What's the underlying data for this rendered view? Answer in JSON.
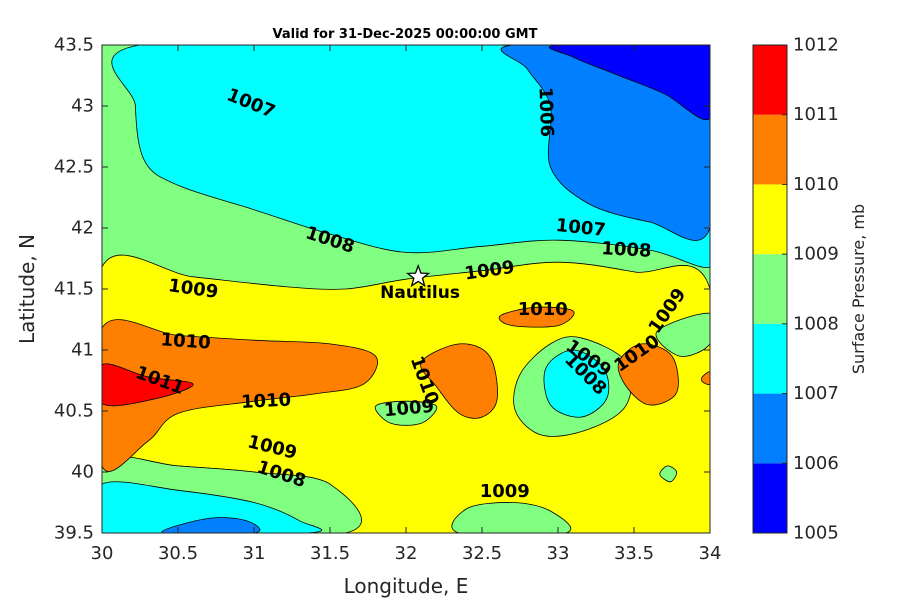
{
  "chart_data": {
    "type": "contour",
    "title": "Valid for 31-Dec-2025 00:00:00 GMT",
    "xlabel": "Longitude, E",
    "ylabel": "Latitude, N",
    "xlim": [
      30,
      34
    ],
    "ylim": [
      39.5,
      43.5
    ],
    "xticks": [
      "30",
      "30.5",
      "31",
      "31.5",
      "32",
      "32.5",
      "33",
      "33.5",
      "34"
    ],
    "yticks": [
      "39.5",
      "40",
      "40.5",
      "41",
      "41.5",
      "42",
      "42.5",
      "43",
      "43.5"
    ],
    "colorbar": {
      "label": "Surface Pressure, mb",
      "levels": [
        1005,
        1006,
        1007,
        1008,
        1009,
        1010,
        1011,
        1012
      ],
      "tick_labels": [
        "1005",
        "1006",
        "1007",
        "1008",
        "1009",
        "1010",
        "1011",
        "1012"
      ],
      "colors": [
        "#0000ff",
        "#0080ff",
        "#00ffff",
        "#80ff80",
        "#ffff00",
        "#ff8000",
        "#ff0000",
        "#800000"
      ]
    },
    "regions": [
      {
        "level": 1008,
        "points": [
          [
            30,
            43.5
          ],
          [
            34,
            43.5
          ],
          [
            34,
            41.5
          ],
          [
            30,
            41.68
          ]
        ]
      },
      {
        "level": 1007,
        "points": [
          [
            30.25,
            43.5
          ],
          [
            32.6,
            43.5
          ],
          [
            33.0,
            43.38
          ],
          [
            33.6,
            43.0
          ],
          [
            34,
            42.0
          ],
          [
            34,
            41.68
          ],
          [
            33.6,
            41.82
          ],
          [
            33.0,
            41.9
          ],
          [
            32.5,
            41.85
          ],
          [
            32.0,
            41.8
          ],
          [
            31.5,
            41.95
          ],
          [
            31.0,
            42.15
          ],
          [
            30.5,
            42.35
          ],
          [
            30.28,
            42.55
          ],
          [
            30.22,
            43.0
          ]
        ]
      },
      {
        "level": 1006,
        "points": [
          [
            32.7,
            43.5
          ],
          [
            34,
            43.5
          ],
          [
            34,
            42.0
          ],
          [
            33.6,
            42.05
          ],
          [
            33.2,
            42.2
          ],
          [
            32.95,
            42.5
          ],
          [
            32.95,
            43.0
          ],
          [
            32.8,
            43.3
          ]
        ]
      },
      {
        "level": 1005,
        "points": [
          [
            33.0,
            43.5
          ],
          [
            34,
            43.5
          ],
          [
            34,
            42.9
          ],
          [
            33.7,
            43.1
          ],
          [
            33.4,
            43.25
          ],
          [
            33.1,
            43.4
          ]
        ]
      },
      {
        "level": 1009,
        "points": [
          [
            30,
            41.68
          ],
          [
            30.6,
            41.6
          ],
          [
            31.2,
            41.52
          ],
          [
            31.6,
            41.5
          ],
          [
            32.0,
            41.58
          ],
          [
            32.5,
            41.65
          ],
          [
            33.0,
            41.72
          ],
          [
            33.5,
            41.64
          ],
          [
            34,
            41.5
          ],
          [
            34,
            39.5
          ],
          [
            31.6,
            39.5
          ],
          [
            31.5,
            39.9
          ],
          [
            31.0,
            40.0
          ],
          [
            30.5,
            40.05
          ],
          [
            30,
            40.1
          ]
        ]
      },
      {
        "level": 1008,
        "points": [
          [
            30,
            40.1
          ],
          [
            30.5,
            40.05
          ],
          [
            31.0,
            40.0
          ],
          [
            31.5,
            39.9
          ],
          [
            31.6,
            39.5
          ],
          [
            30,
            39.5
          ]
        ]
      },
      {
        "level": 1007,
        "points": [
          [
            30,
            39.9
          ],
          [
            30.5,
            39.85
          ],
          [
            31.0,
            39.75
          ],
          [
            31.3,
            39.6
          ],
          [
            31.35,
            39.5
          ],
          [
            30,
            39.5
          ]
        ]
      },
      {
        "level": 1006,
        "points": [
          [
            30.4,
            39.5
          ],
          [
            30.7,
            39.62
          ],
          [
            30.95,
            39.6
          ],
          [
            31.0,
            39.5
          ]
        ]
      },
      {
        "level": 1008,
        "points": [
          [
            32.35,
            39.5
          ],
          [
            32.4,
            39.7
          ],
          [
            32.7,
            39.75
          ],
          [
            32.95,
            39.68
          ],
          [
            33.05,
            39.5
          ]
        ]
      },
      {
        "level": 1010,
        "points": [
          [
            30,
            41.18
          ],
          [
            30.5,
            41.12
          ],
          [
            31.0,
            41.08
          ],
          [
            31.5,
            41.05
          ],
          [
            31.8,
            40.95
          ],
          [
            31.72,
            40.72
          ],
          [
            31.4,
            40.64
          ],
          [
            31.0,
            40.58
          ],
          [
            30.5,
            40.48
          ],
          [
            30.3,
            40.25
          ],
          [
            30,
            40.05
          ]
        ]
      },
      {
        "level": 1011,
        "points": [
          [
            30,
            40.88
          ],
          [
            30.3,
            40.78
          ],
          [
            30.6,
            40.72
          ],
          [
            30.35,
            40.6
          ],
          [
            30,
            40.56
          ]
        ]
      },
      {
        "level": 1010,
        "points": [
          [
            32.1,
            40.9
          ],
          [
            32.35,
            41.05
          ],
          [
            32.55,
            40.95
          ],
          [
            32.6,
            40.6
          ],
          [
            32.5,
            40.45
          ],
          [
            32.35,
            40.48
          ],
          [
            32.2,
            40.7
          ]
        ]
      },
      {
        "level": 1008,
        "points": [
          [
            31.8,
            40.54
          ],
          [
            32.0,
            40.58
          ],
          [
            32.2,
            40.54
          ],
          [
            32.1,
            40.4
          ],
          [
            31.9,
            40.4
          ]
        ]
      },
      {
        "level": 1010,
        "points": [
          [
            32.62,
            41.28
          ],
          [
            32.85,
            41.35
          ],
          [
            33.1,
            41.32
          ],
          [
            33.0,
            41.2
          ],
          [
            32.7,
            41.2
          ]
        ]
      },
      {
        "level": 1008,
        "points": [
          [
            32.75,
            40.8
          ],
          [
            32.95,
            41.05
          ],
          [
            33.15,
            41.1
          ],
          [
            33.45,
            40.9
          ],
          [
            33.45,
            40.55
          ],
          [
            33.2,
            40.35
          ],
          [
            32.9,
            40.3
          ],
          [
            32.72,
            40.5
          ]
        ]
      },
      {
        "level": 1007,
        "points": [
          [
            32.92,
            40.85
          ],
          [
            33.1,
            41.0
          ],
          [
            33.3,
            40.85
          ],
          [
            33.32,
            40.6
          ],
          [
            33.15,
            40.45
          ],
          [
            32.95,
            40.55
          ]
        ]
      },
      {
        "level": 1010,
        "points": [
          [
            33.4,
            40.9
          ],
          [
            33.55,
            41.05
          ],
          [
            33.75,
            40.95
          ],
          [
            33.78,
            40.65
          ],
          [
            33.6,
            40.55
          ],
          [
            33.45,
            40.7
          ]
        ]
      },
      {
        "level": 1008,
        "points": [
          [
            33.65,
            41.15
          ],
          [
            34,
            41.3
          ],
          [
            34,
            41.05
          ],
          [
            33.8,
            40.95
          ]
        ]
      },
      {
        "level": 1008,
        "points": [
          [
            33.67,
            39.98
          ],
          [
            33.72,
            40.05
          ],
          [
            33.78,
            40.0
          ],
          [
            33.74,
            39.92
          ]
        ]
      },
      {
        "level": 1010,
        "points": [
          [
            33.95,
            40.78
          ],
          [
            34,
            40.82
          ],
          [
            34,
            40.72
          ],
          [
            33.95,
            40.74
          ]
        ]
      }
    ],
    "contour_labels": [
      {
        "text": "1007",
        "x": 30.98,
        "y": 43.02,
        "angle": 22
      },
      {
        "text": "1006",
        "x": 32.92,
        "y": 42.95,
        "angle": 88
      },
      {
        "text": "1007",
        "x": 33.15,
        "y": 42.0,
        "angle": 6
      },
      {
        "text": "1008",
        "x": 31.5,
        "y": 41.9,
        "angle": 18
      },
      {
        "text": "1008",
        "x": 33.45,
        "y": 41.82,
        "angle": 3
      },
      {
        "text": "1009",
        "x": 30.6,
        "y": 41.5,
        "angle": 8
      },
      {
        "text": "1009",
        "x": 32.55,
        "y": 41.65,
        "angle": -8
      },
      {
        "text": "1010",
        "x": 32.9,
        "y": 41.33,
        "angle": 0
      },
      {
        "text": "1009",
        "x": 33.72,
        "y": 41.32,
        "angle": -55
      },
      {
        "text": "1010",
        "x": 30.55,
        "y": 41.07,
        "angle": 4
      },
      {
        "text": "1011",
        "x": 30.38,
        "y": 40.75,
        "angle": 20
      },
      {
        "text": "1010",
        "x": 31.08,
        "y": 40.58,
        "angle": -3
      },
      {
        "text": "1010",
        "x": 32.12,
        "y": 40.75,
        "angle": 70
      },
      {
        "text": "1009",
        "x": 32.02,
        "y": 40.52,
        "angle": -5
      },
      {
        "text": "1009",
        "x": 33.2,
        "y": 40.93,
        "angle": 35
      },
      {
        "text": "1008",
        "x": 33.18,
        "y": 40.8,
        "angle": 45
      },
      {
        "text": "1010",
        "x": 33.52,
        "y": 40.97,
        "angle": -35
      },
      {
        "text": "1009",
        "x": 31.12,
        "y": 40.2,
        "angle": 14
      },
      {
        "text": "1008",
        "x": 31.18,
        "y": 39.98,
        "angle": 18
      },
      {
        "text": "1009",
        "x": 32.65,
        "y": 39.84,
        "angle": 0
      }
    ],
    "site": {
      "label": "Nautilus",
      "x": 32.08,
      "y": 41.6,
      "marker": "star"
    }
  }
}
